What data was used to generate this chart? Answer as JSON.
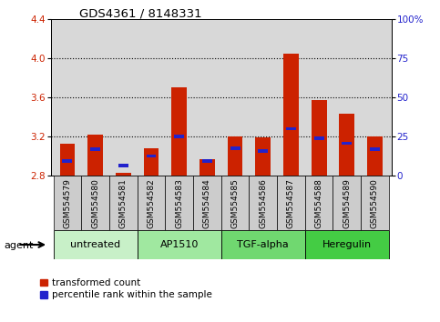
{
  "title": "GDS4361 / 8148331",
  "samples": [
    "GSM554579",
    "GSM554580",
    "GSM554581",
    "GSM554582",
    "GSM554583",
    "GSM554584",
    "GSM554585",
    "GSM554586",
    "GSM554587",
    "GSM554588",
    "GSM554589",
    "GSM554590"
  ],
  "red_values": [
    3.13,
    3.22,
    2.83,
    3.08,
    3.7,
    2.97,
    3.2,
    3.19,
    4.05,
    3.57,
    3.43,
    3.2
  ],
  "blue_values": [
    2.95,
    3.07,
    2.9,
    3.0,
    3.2,
    2.95,
    3.08,
    3.05,
    3.28,
    3.18,
    3.13,
    3.07
  ],
  "ymin": 2.8,
  "ymax": 4.4,
  "yticks_left": [
    2.8,
    3.2,
    3.6,
    4.0,
    4.4
  ],
  "yticks_right": [
    0,
    25,
    50,
    75,
    100
  ],
  "groups": [
    {
      "label": "untreated",
      "start": 0,
      "end": 3,
      "color": "#c8f0c8"
    },
    {
      "label": "AP1510",
      "start": 3,
      "end": 6,
      "color": "#a0e8a0"
    },
    {
      "label": "TGF-alpha",
      "start": 6,
      "end": 9,
      "color": "#70d870"
    },
    {
      "label": "Heregulin",
      "start": 9,
      "end": 12,
      "color": "#44cc44"
    }
  ],
  "bar_color": "#cc2200",
  "blue_color": "#2222cc",
  "bar_width": 0.55,
  "background_color": "#ffffff",
  "plot_bg": "#d8d8d8",
  "tick_bg": "#cccccc",
  "legend_red": "transformed count",
  "legend_blue": "percentile rank within the sample",
  "agent_label": "agent"
}
